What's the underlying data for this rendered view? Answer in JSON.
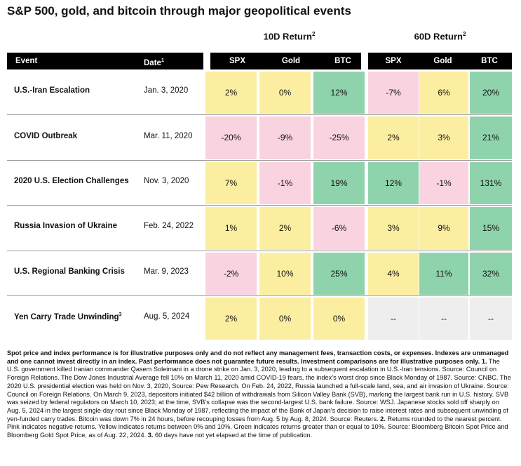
{
  "title": "S&P 500, gold, and bitcoin through major geopolitical events",
  "groups": {
    "ten_day": {
      "label": "10D Return",
      "sup": "2"
    },
    "sixty_day": {
      "label": "60D Return",
      "sup": "2"
    }
  },
  "columns": {
    "event": "Event",
    "date": "Date",
    "date_sup": "1",
    "spx": "SPX",
    "gold": "Gold",
    "btc": "BTC"
  },
  "colors": {
    "pink_negative": "#f9d3df",
    "yellow_0_to_10": "#fbeea0",
    "green_10_plus": "#8fd3ac",
    "gray_na": "#eeeeee"
  },
  "chart_data": {
    "type": "table",
    "title": "S&P 500, gold, and bitcoin through major geopolitical events",
    "rows": [
      {
        "event": "U.S.-Iran Escalation",
        "sup": "",
        "date": "Jan. 3, 2020",
        "r10": [
          {
            "v": "2%",
            "c": "yellow"
          },
          {
            "v": "0%",
            "c": "yellow"
          },
          {
            "v": "12%",
            "c": "green"
          }
        ],
        "r60": [
          {
            "v": "-7%",
            "c": "pink"
          },
          {
            "v": "6%",
            "c": "yellow"
          },
          {
            "v": "20%",
            "c": "green"
          }
        ]
      },
      {
        "event": "COVID Outbreak",
        "sup": "",
        "date": "Mar. 11, 2020",
        "r10": [
          {
            "v": "-20%",
            "c": "pink"
          },
          {
            "v": "-9%",
            "c": "pink"
          },
          {
            "v": "-25%",
            "c": "pink"
          }
        ],
        "r60": [
          {
            "v": "2%",
            "c": "yellow"
          },
          {
            "v": "3%",
            "c": "yellow"
          },
          {
            "v": "21%",
            "c": "green"
          }
        ]
      },
      {
        "event": "2020 U.S. Election Challenges",
        "sup": "",
        "date": "Nov. 3, 2020",
        "r10": [
          {
            "v": "7%",
            "c": "yellow"
          },
          {
            "v": "-1%",
            "c": "pink"
          },
          {
            "v": "19%",
            "c": "green"
          }
        ],
        "r60": [
          {
            "v": "12%",
            "c": "green"
          },
          {
            "v": "-1%",
            "c": "pink"
          },
          {
            "v": "131%",
            "c": "green"
          }
        ]
      },
      {
        "event": "Russia Invasion of Ukraine",
        "sup": "",
        "date": "Feb. 24, 2022",
        "r10": [
          {
            "v": "1%",
            "c": "yellow"
          },
          {
            "v": "2%",
            "c": "yellow"
          },
          {
            "v": "-6%",
            "c": "pink"
          }
        ],
        "r60": [
          {
            "v": "3%",
            "c": "yellow"
          },
          {
            "v": "9%",
            "c": "yellow"
          },
          {
            "v": "15%",
            "c": "green"
          }
        ]
      },
      {
        "event": "U.S. Regional Banking Crisis",
        "sup": "",
        "date": "Mar. 9, 2023",
        "r10": [
          {
            "v": "-2%",
            "c": "pink"
          },
          {
            "v": "10%",
            "c": "yellow"
          },
          {
            "v": "25%",
            "c": "green"
          }
        ],
        "r60": [
          {
            "v": "4%",
            "c": "yellow"
          },
          {
            "v": "11%",
            "c": "green"
          },
          {
            "v": "32%",
            "c": "green"
          }
        ]
      },
      {
        "event": "Yen Carry Trade Unwinding",
        "sup": "3",
        "date": "Aug. 5, 2024",
        "r10": [
          {
            "v": "2%",
            "c": "yellow"
          },
          {
            "v": "0%",
            "c": "yellow"
          },
          {
            "v": "0%",
            "c": "yellow"
          }
        ],
        "r60": [
          {
            "v": "--",
            "c": "gray"
          },
          {
            "v": "--",
            "c": "gray"
          },
          {
            "v": "--",
            "c": "gray"
          }
        ]
      }
    ]
  },
  "notes": {
    "bold": "Spot price and index performance is for illustrative purposes only and do not reflect any management fees, transaction costs, or expenses. Indexes are unmanaged and one cannot invest directly in an index. Past performance does not guarantee future results. Investment comparisons are for illustrative purposes only.",
    "n1_label": "1.",
    "n1": "The U.S. government killed Iranian commander Qasem Soleimani in a drone strike on Jan. 3, 2020, leading to a subsequent escalation in U.S.-Iran tensions. Source: Council on Foreign Relations. The Dow Jones Industrial Average fell 10% on March 11, 2020 amid COVID-19 fears, the index’s worst drop since Black Monday of 1987. Source: CNBC. The 2020 U.S. presidential election was held on Nov. 3, 2020, Source: Pew Research. On Feb. 24, 2022, Russia launched a full-scale land, sea, and air invasion of Ukraine. Source: Council on Foreign Relations. On March 9, 2023, depositors initiated $42 billion of withdrawals from Silicon Valley Bank (SVB), marking the largest bank run in U.S. history. SVB was seized by federal regulators on March 10, 2023; at the time, SVB’s collapse was the second-largest U.S. bank failure. Source: WSJ. Japanese stocks sold off sharply on Aug. 5, 2024 in the largest single-day rout since Black Monday of 1987, reflecting the impact of the Bank of Japan’s decision to raise interest rates and subsequent unwinding of yen-funded carry trades. Bitcoin was down 7% in 24 hours, before recouping losses from Aug. 5 by Aug. 8, 2024. Source: Reuters.",
    "n2_label": "2.",
    "n2": "Returns rounded to the nearest percent. Pink indicates negative returns. Yellow indicates returns between 0% and 10%. Green indicates returns greater than or equal to 10%. Source: Bloomberg Bitcoin Spot Price and Bloomberg Gold Spot Price, as of Aug. 22, 2024.",
    "n3_label": "3.",
    "n3": "60 days have not yet elapsed at the time of publication."
  }
}
